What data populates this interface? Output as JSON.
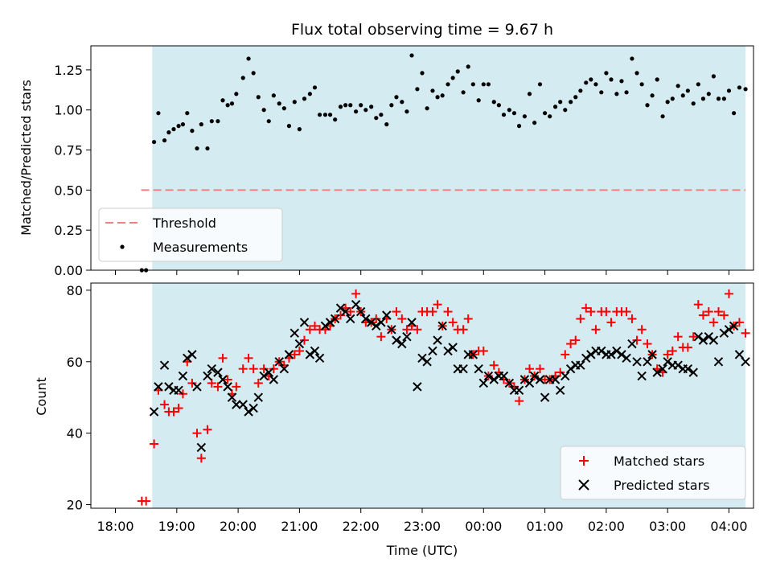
{
  "chart_data": [
    {
      "type": "scatter",
      "title": "Flux total observing time = 9.67 h",
      "xlabel": "",
      "ylabel": "Matched/Predicted stars",
      "xlim": [
        17.6,
        28.4
      ],
      "ylim": [
        0,
        1.4
      ],
      "yticks": [
        "0.00",
        "0.25",
        "0.50",
        "0.75",
        "1.00",
        "1.25"
      ],
      "ytick_values": [
        0,
        0.25,
        0.5,
        0.75,
        1.0,
        1.25
      ],
      "shade_range": [
        18.6,
        28.27
      ],
      "threshold": {
        "value": 0.5,
        "xrange": [
          18.42,
          28.27
        ],
        "color": "#f08080",
        "name": "Threshold"
      },
      "series": [
        {
          "name": "Measurements",
          "color": "#000000",
          "x": [
            18.43,
            18.5,
            18.63,
            18.7,
            18.8,
            18.87,
            18.95,
            19.03,
            19.1,
            19.17,
            19.25,
            19.33,
            19.4,
            19.5,
            19.57,
            19.67,
            19.75,
            19.83,
            19.9,
            19.97,
            20.08,
            20.17,
            20.25,
            20.33,
            20.42,
            20.5,
            20.58,
            20.67,
            20.75,
            20.83,
            20.92,
            21.0,
            21.08,
            21.17,
            21.25,
            21.33,
            21.42,
            21.5,
            21.58,
            21.67,
            21.75,
            21.83,
            21.92,
            22.0,
            22.08,
            22.17,
            22.25,
            22.33,
            22.42,
            22.5,
            22.58,
            22.67,
            22.75,
            22.83,
            22.92,
            23.0,
            23.08,
            23.17,
            23.25,
            23.33,
            23.42,
            23.5,
            23.58,
            23.67,
            23.75,
            23.83,
            23.92,
            24.0,
            24.08,
            24.17,
            24.25,
            24.33,
            24.42,
            24.5,
            24.58,
            24.67,
            24.75,
            24.83,
            24.92,
            25.0,
            25.08,
            25.17,
            25.25,
            25.33,
            25.42,
            25.5,
            25.58,
            25.67,
            25.75,
            25.83,
            25.92,
            26.0,
            26.08,
            26.17,
            26.25,
            26.33,
            26.42,
            26.5,
            26.58,
            26.67,
            26.75,
            26.83,
            26.92,
            27.0,
            27.08,
            27.17,
            27.25,
            27.33,
            27.42,
            27.5,
            27.58,
            27.67,
            27.75,
            27.83,
            27.92,
            28.0,
            28.08,
            28.17,
            28.27
          ],
          "y": [
            0.0,
            0.0,
            0.8,
            0.98,
            0.81,
            0.86,
            0.88,
            0.9,
            0.91,
            0.98,
            0.87,
            0.76,
            0.91,
            0.76,
            0.93,
            0.93,
            1.06,
            1.03,
            1.04,
            1.1,
            1.2,
            1.32,
            1.23,
            1.08,
            1.0,
            0.93,
            1.09,
            1.04,
            1.01,
            0.9,
            1.05,
            0.88,
            1.07,
            1.1,
            1.14,
            0.97,
            0.97,
            0.97,
            0.94,
            1.02,
            1.03,
            1.03,
            0.99,
            1.03,
            1.0,
            1.02,
            0.95,
            0.97,
            0.91,
            1.03,
            1.08,
            1.05,
            0.99,
            1.34,
            1.13,
            1.23,
            1.01,
            1.12,
            1.08,
            1.09,
            1.16,
            1.2,
            1.24,
            1.11,
            1.27,
            1.16,
            1.06,
            1.16,
            1.16,
            1.05,
            1.03,
            0.97,
            1.0,
            0.98,
            0.9,
            0.96,
            1.1,
            0.92,
            1.16,
            0.98,
            0.96,
            1.02,
            1.05,
            1.0,
            1.05,
            1.08,
            1.12,
            1.17,
            1.19,
            1.16,
            1.11,
            1.23,
            1.19,
            1.1,
            1.18,
            1.11,
            1.32,
            1.23,
            1.16,
            1.03,
            1.09,
            1.19,
            0.96,
            1.05,
            1.07,
            1.15,
            1.09,
            1.12,
            1.04,
            1.16,
            1.07,
            1.1,
            1.21,
            1.07,
            1.07,
            1.12,
            0.98,
            1.14,
            1.13
          ]
        }
      ],
      "legend": {
        "position": "lower-left",
        "entries": [
          "Threshold",
          "Measurements"
        ]
      }
    },
    {
      "type": "scatter",
      "title": "",
      "xlabel": "Time (UTC)",
      "ylabel": "Count",
      "xlim": [
        17.6,
        28.4
      ],
      "ylim": [
        19,
        82
      ],
      "yticks": [
        "20",
        "40",
        "60",
        "80"
      ],
      "ytick_values": [
        20,
        40,
        60,
        80
      ],
      "xticks": [
        "18:00",
        "19:00",
        "20:00",
        "21:00",
        "22:00",
        "23:00",
        "00:00",
        "01:00",
        "02:00",
        "03:00",
        "04:00"
      ],
      "xtick_values": [
        18,
        19,
        20,
        21,
        22,
        23,
        24,
        25,
        26,
        27,
        28
      ],
      "shade_range": [
        18.6,
        28.27
      ],
      "series": [
        {
          "name": "Matched stars",
          "marker": "plus",
          "color": "#ff0000",
          "x": [
            18.43,
            18.5,
            18.63,
            18.7,
            18.8,
            18.87,
            18.95,
            19.03,
            19.1,
            19.17,
            19.25,
            19.33,
            19.4,
            19.5,
            19.57,
            19.67,
            19.75,
            19.83,
            19.9,
            19.97,
            20.08,
            20.17,
            20.25,
            20.33,
            20.42,
            20.5,
            20.58,
            20.67,
            20.75,
            20.83,
            20.92,
            21.0,
            21.08,
            21.17,
            21.25,
            21.33,
            21.42,
            21.5,
            21.58,
            21.67,
            21.75,
            21.83,
            21.92,
            22.0,
            22.08,
            22.17,
            22.25,
            22.33,
            22.42,
            22.5,
            22.58,
            22.67,
            22.75,
            22.83,
            22.92,
            23.0,
            23.08,
            23.17,
            23.25,
            23.33,
            23.42,
            23.5,
            23.58,
            23.67,
            23.75,
            23.83,
            23.92,
            24.0,
            24.08,
            24.17,
            24.25,
            24.33,
            24.42,
            24.5,
            24.58,
            24.67,
            24.75,
            24.83,
            24.92,
            25.0,
            25.08,
            25.17,
            25.25,
            25.33,
            25.42,
            25.5,
            25.58,
            25.67,
            25.75,
            25.83,
            25.92,
            26.0,
            26.08,
            26.17,
            26.25,
            26.33,
            26.42,
            26.5,
            26.58,
            26.67,
            26.75,
            26.83,
            26.92,
            27.0,
            27.08,
            27.17,
            27.25,
            27.33,
            27.42,
            27.5,
            27.58,
            27.67,
            27.75,
            27.83,
            27.92,
            28.0,
            28.08,
            28.17,
            28.27
          ],
          "y": [
            21,
            21,
            37,
            52,
            48,
            46,
            46,
            47,
            51,
            60,
            54,
            40,
            33,
            41,
            54,
            53,
            61,
            55,
            51,
            53,
            58,
            61,
            58,
            54,
            58,
            56,
            58,
            60,
            59,
            61,
            62,
            63,
            66,
            69,
            70,
            69,
            69,
            70,
            72,
            73,
            75,
            74,
            79,
            74,
            71,
            71,
            72,
            67,
            72,
            69,
            74,
            72,
            69,
            70,
            69,
            74,
            74,
            74,
            76,
            70,
            74,
            71,
            69,
            69,
            72,
            62,
            63,
            63,
            56,
            59,
            57,
            55,
            54,
            53,
            49,
            55,
            58,
            56,
            58,
            55,
            55,
            56,
            57,
            62,
            65,
            66,
            72,
            75,
            74,
            69,
            74,
            74,
            71,
            74,
            74,
            74,
            72,
            66,
            69,
            65,
            62,
            58,
            57,
            62,
            63,
            67,
            64,
            64,
            67,
            76,
            73,
            74,
            71,
            74,
            73,
            79,
            70,
            71,
            68
          ]
        },
        {
          "name": "Predicted stars",
          "marker": "x",
          "color": "#000000",
          "x": [
            18.63,
            18.7,
            18.8,
            18.87,
            18.95,
            19.03,
            19.1,
            19.17,
            19.25,
            19.33,
            19.4,
            19.5,
            19.57,
            19.67,
            19.75,
            19.83,
            19.9,
            19.97,
            20.08,
            20.17,
            20.25,
            20.33,
            20.42,
            20.5,
            20.58,
            20.67,
            20.75,
            20.83,
            20.92,
            21.0,
            21.08,
            21.17,
            21.25,
            21.33,
            21.42,
            21.5,
            21.58,
            21.67,
            21.75,
            21.83,
            21.92,
            22.0,
            22.08,
            22.17,
            22.25,
            22.33,
            22.42,
            22.5,
            22.58,
            22.67,
            22.75,
            22.83,
            22.92,
            23.0,
            23.08,
            23.17,
            23.25,
            23.33,
            23.42,
            23.5,
            23.58,
            23.67,
            23.75,
            23.83,
            23.92,
            24.0,
            24.08,
            24.17,
            24.25,
            24.33,
            24.42,
            24.5,
            24.58,
            24.67,
            24.75,
            24.83,
            24.92,
            25.0,
            25.08,
            25.17,
            25.25,
            25.33,
            25.42,
            25.5,
            25.58,
            25.67,
            25.75,
            25.83,
            25.92,
            26.0,
            26.08,
            26.17,
            26.25,
            26.33,
            26.42,
            26.5,
            26.58,
            26.67,
            26.75,
            26.83,
            26.92,
            27.0,
            27.08,
            27.17,
            27.25,
            27.33,
            27.42,
            27.5,
            27.58,
            27.67,
            27.75,
            27.83,
            27.92,
            28.0,
            28.08,
            28.17,
            28.27
          ],
          "y": [
            46,
            53,
            59,
            53,
            52,
            52,
            56,
            61,
            62,
            53,
            36,
            56,
            58,
            57,
            55,
            53,
            50,
            48,
            48,
            46,
            47,
            50,
            56,
            57,
            55,
            60,
            58,
            62,
            68,
            65,
            71,
            62,
            63,
            61,
            70,
            71,
            72,
            75,
            74,
            72,
            76,
            74,
            72,
            71,
            70,
            71,
            73,
            69,
            66,
            65,
            67,
            71,
            53,
            61,
            60,
            63,
            66,
            70,
            63,
            64,
            58,
            58,
            62,
            62,
            58,
            54,
            56,
            55,
            56,
            56,
            54,
            52,
            52,
            55,
            54,
            56,
            55,
            50,
            55,
            55,
            52,
            56,
            58,
            59,
            59,
            61,
            62,
            63,
            63,
            62,
            62,
            63,
            62,
            61,
            65,
            60,
            56,
            60,
            62,
            57,
            58,
            60,
            59,
            59,
            58,
            58,
            57,
            67,
            66,
            67,
            66,
            60,
            68,
            69,
            70,
            62,
            60
          ]
        }
      ],
      "legend": {
        "position": "lower-right",
        "entries": [
          "Matched stars",
          "Predicted stars"
        ]
      }
    }
  ]
}
